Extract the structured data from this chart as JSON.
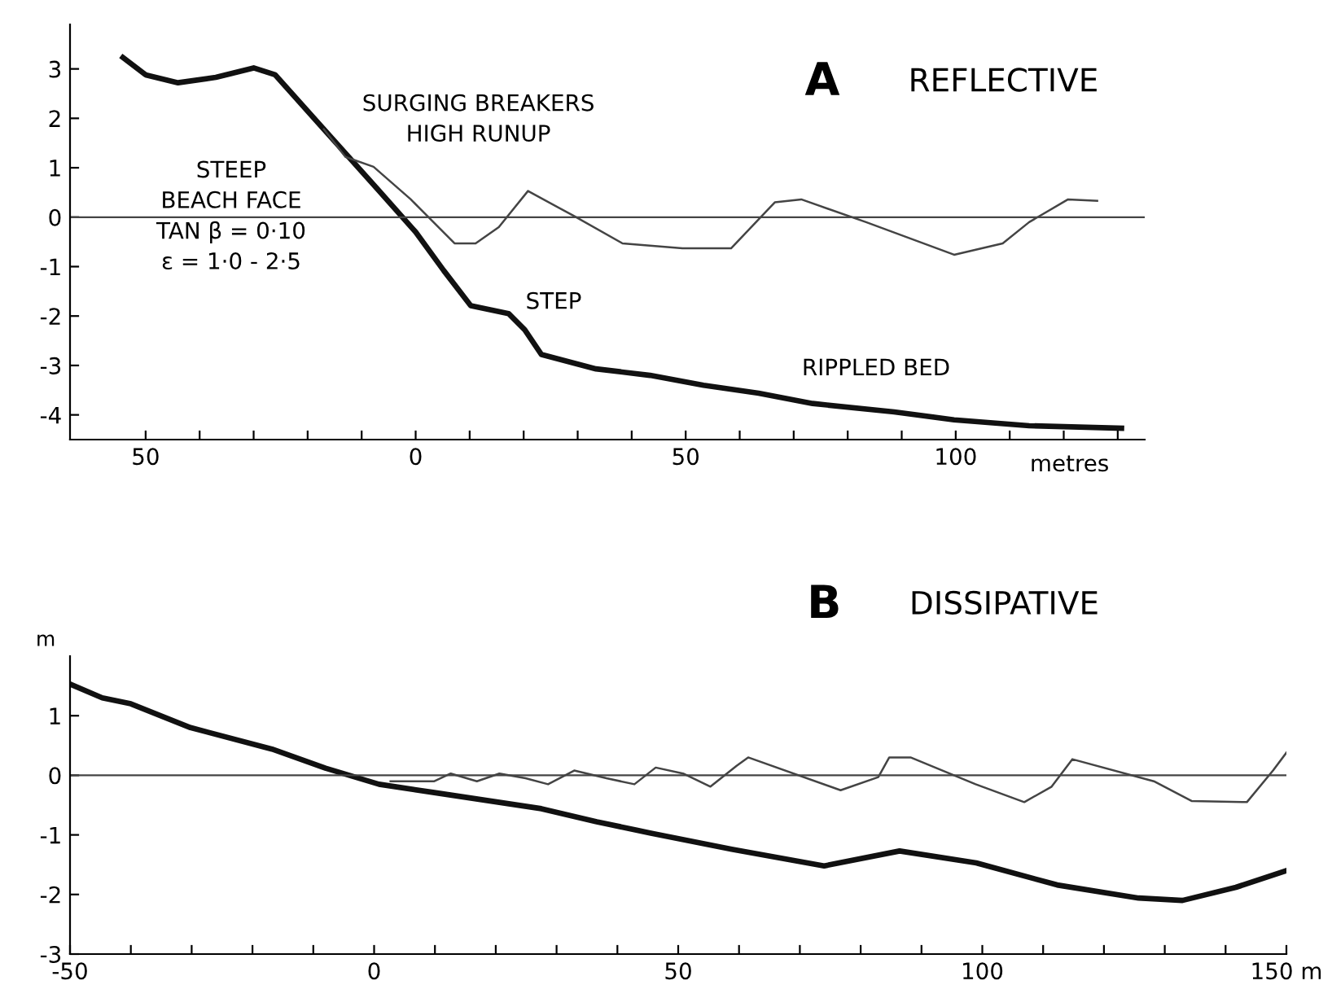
{
  "chart_data": [
    {
      "type": "line",
      "title": "A",
      "subtitle": "REFLECTIVE",
      "xlabel": "metres",
      "xlim": [
        -64,
        135
      ],
      "ylim": [
        -4.5,
        3.9
      ],
      "xticks": [
        {
          "value": -50,
          "label": "50"
        },
        {
          "value": -40,
          "label": null
        },
        {
          "value": -30,
          "label": null
        },
        {
          "value": -20,
          "label": null
        },
        {
          "value": -10,
          "label": null
        },
        0,
        {
          "value": 10,
          "label": null
        },
        {
          "value": 20,
          "label": null
        },
        {
          "value": 30,
          "label": null
        },
        {
          "value": 40,
          "label": null
        },
        50,
        {
          "value": 60,
          "label": null
        },
        {
          "value": 70,
          "label": null
        },
        {
          "value": 80,
          "label": null
        },
        {
          "value": 90,
          "label": null
        },
        100,
        {
          "value": 110,
          "label": null
        },
        {
          "value": 120,
          "label": null
        },
        {
          "value": 130,
          "label": null
        }
      ],
      "yticks": [
        -4,
        -3,
        -2,
        -1,
        0,
        1,
        2,
        3
      ],
      "grid": false,
      "legend": false,
      "marker": "none",
      "line_style": "solid",
      "series": [
        {
          "color": "#111111",
          "x": [
            -54.2,
            -50,
            -44,
            -37,
            -30,
            -26,
            -17,
            -7,
            0,
            5.2,
            10.2,
            17.2,
            20.2,
            23.3,
            33.4,
            43.4,
            53.3,
            63.5,
            73.5,
            88.6,
            99.7,
            113.6,
            130.7
          ],
          "values": [
            3.23,
            2.88,
            2.72,
            2.83,
            3.02,
            2.88,
            1.78,
            0.56,
            -0.3,
            -1.08,
            -1.79,
            -1.95,
            -2.28,
            -2.78,
            -3.07,
            -3.2,
            -3.4,
            -3.56,
            -3.77,
            -3.94,
            -4.1,
            -4.22,
            -4.27
          ]
        },
        {
          "color": "#444444",
          "x": [
            -17,
            -13,
            -7.8,
            -0.9,
            7.2,
            11.1,
            15.4,
            20.8,
            29.2,
            38.3,
            49.4,
            58.4,
            66.5,
            71.4,
            83.4,
            99.7,
            108.7,
            113.6,
            120.8,
            126.2
          ],
          "values": [
            1.78,
            1.22,
            1.02,
            0.36,
            -0.53,
            -0.53,
            -0.2,
            0.53,
            0.03,
            -0.53,
            -0.63,
            -0.63,
            0.3,
            0.36,
            -0.1,
            -0.76,
            -0.53,
            -0.1,
            0.36,
            0.33
          ]
        }
      ],
      "ref_lines": [
        {
          "axis": "y",
          "value": 0,
          "color": "#444444"
        }
      ],
      "annotations": [
        "SURGING BREAKERS\nHIGH RUNUP",
        "STEEP\nBEACH FACE\nTAN β = 0·10\nε = 1·0 - 2·5",
        "STEP",
        "RIPPLED BED"
      ]
    },
    {
      "type": "line",
      "title": "B",
      "subtitle": "DISSIPATIVE",
      "ylabel": "m",
      "xlim": [
        -50,
        150
      ],
      "ylim": [
        -3,
        2
      ],
      "xticks": [
        -50,
        {
          "value": -40,
          "label": null
        },
        {
          "value": -30,
          "label": null
        },
        {
          "value": -20,
          "label": null
        },
        {
          "value": -10,
          "label": null
        },
        0,
        {
          "value": 10,
          "label": null
        },
        {
          "value": 20,
          "label": null
        },
        {
          "value": 30,
          "label": null
        },
        {
          "value": 40,
          "label": null
        },
        50,
        {
          "value": 60,
          "label": null
        },
        {
          "value": 70,
          "label": null
        },
        {
          "value": 80,
          "label": null
        },
        {
          "value": 90,
          "label": null
        },
        100,
        {
          "value": 110,
          "label": null
        },
        {
          "value": 120,
          "label": null
        },
        {
          "value": 130,
          "label": null
        },
        {
          "value": 140,
          "label": null
        },
        {
          "value": 150,
          "label": "150 m"
        }
      ],
      "yticks": [
        -3,
        -2,
        -1,
        0,
        1
      ],
      "grid": false,
      "legend": false,
      "marker": "none",
      "line_style": "solid",
      "series": [
        {
          "color": "#111111",
          "x": [
            -50,
            -44.7,
            -40,
            -30.2,
            -16.8,
            -8,
            0.8,
            9.9,
            27.5,
            36.6,
            45.5,
            58.8,
            74,
            86.4,
            99,
            112.3,
            125.7,
            132.9,
            141.7,
            150
          ],
          "values": [
            1.53,
            1.3,
            1.2,
            0.8,
            0.44,
            0.12,
            -0.15,
            -0.29,
            -0.56,
            -0.78,
            -0.97,
            -1.24,
            -1.52,
            -1.27,
            -1.47,
            -1.84,
            -2.06,
            -2.1,
            -1.88,
            -1.6
          ]
        },
        {
          "color": "#444444",
          "x": [
            2.7,
            9.9,
            12.6,
            16.9,
            20.6,
            24.9,
            28.6,
            32.9,
            38.2,
            42.8,
            46.3,
            50.8,
            55.3,
            59.6,
            61.5,
            76.7,
            82.9,
            84.7,
            88.2,
            98.9,
            106.9,
            111.4,
            114.8,
            128.2,
            134.4,
            143.5,
            147.8,
            150
          ],
          "values": [
            -0.1,
            -0.1,
            0.03,
            -0.1,
            0.03,
            -0.05,
            -0.15,
            0.08,
            -0.05,
            -0.15,
            0.13,
            0.03,
            -0.19,
            0.16,
            0.3,
            -0.25,
            -0.03,
            0.3,
            0.3,
            -0.15,
            -0.45,
            -0.19,
            0.27,
            -0.1,
            -0.43,
            -0.45,
            0.08,
            0.38
          ]
        }
      ],
      "ref_lines": [
        {
          "axis": "y",
          "value": 0,
          "color": "#444444"
        }
      ]
    }
  ]
}
